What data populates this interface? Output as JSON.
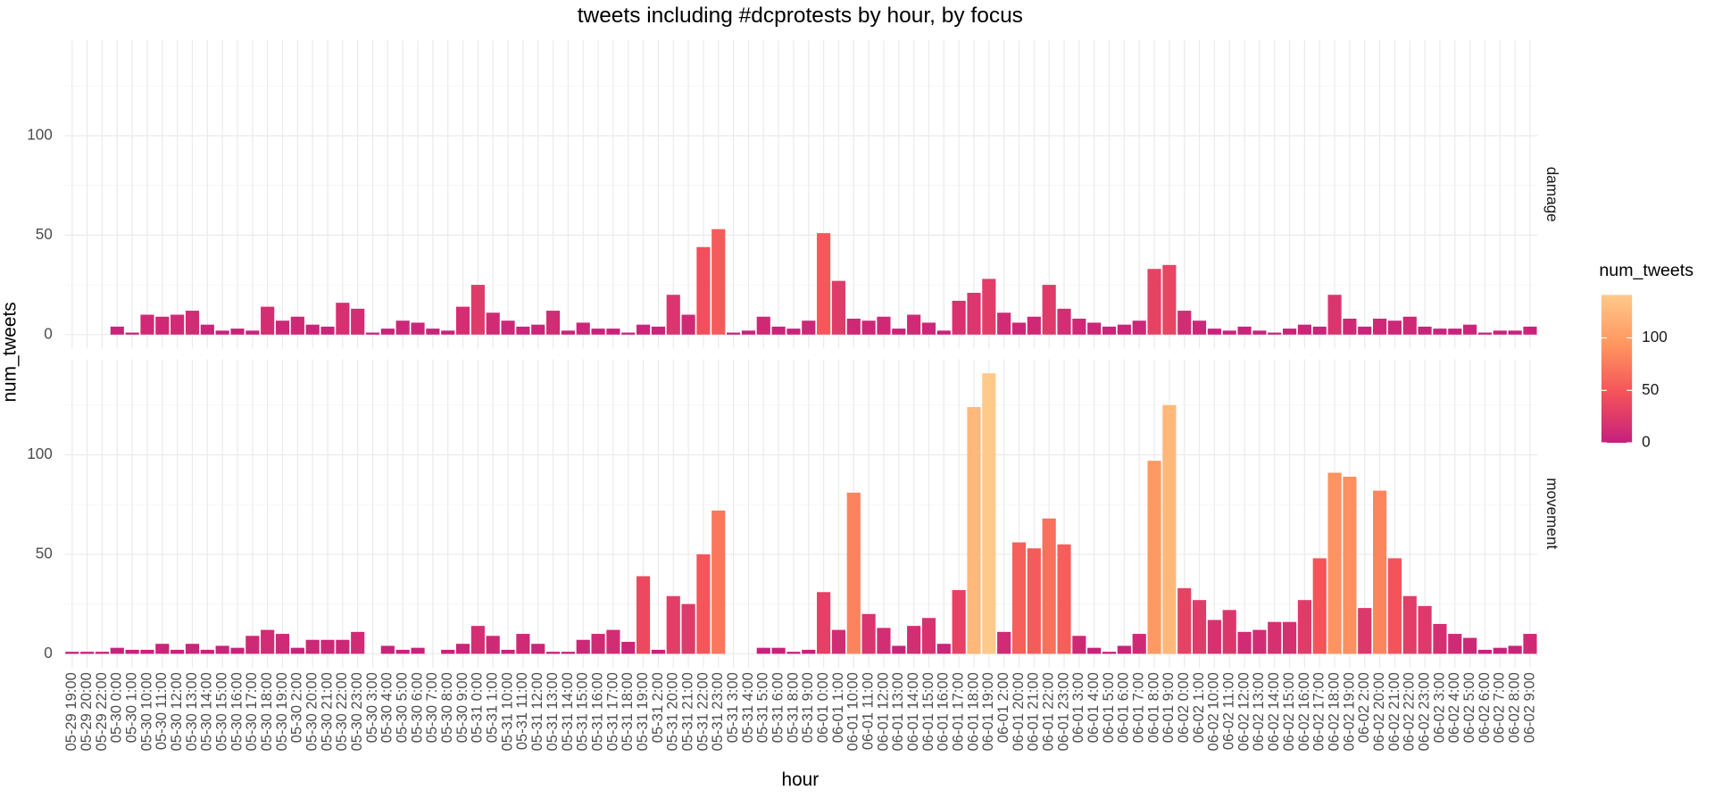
{
  "chart_data": {
    "type": "bar",
    "title": "tweets including #dcprotests by hour, by focus",
    "x_label": "hour",
    "y_label": "num_tweets",
    "legend_title": "num_tweets",
    "categories": [
      "05-29 19:00",
      "05-29 20:00",
      "05-29 22:00",
      "05-30 0:00",
      "05-30 1:00",
      "05-30 10:00",
      "05-30 11:00",
      "05-30 12:00",
      "05-30 13:00",
      "05-30 14:00",
      "05-30 15:00",
      "05-30 16:00",
      "05-30 17:00",
      "05-30 18:00",
      "05-30 19:00",
      "05-30 2:00",
      "05-30 20:00",
      "05-30 21:00",
      "05-30 22:00",
      "05-30 23:00",
      "05-30 3:00",
      "05-30 4:00",
      "05-30 5:00",
      "05-30 6:00",
      "05-30 7:00",
      "05-30 8:00",
      "05-30 9:00",
      "05-31 0:00",
      "05-31 1:00",
      "05-31 10:00",
      "05-31 11:00",
      "05-31 12:00",
      "05-31 13:00",
      "05-31 14:00",
      "05-31 15:00",
      "05-31 16:00",
      "05-31 17:00",
      "05-31 18:00",
      "05-31 19:00",
      "05-31 2:00",
      "05-31 20:00",
      "05-31 21:00",
      "05-31 22:00",
      "05-31 23:00",
      "05-31 3:00",
      "05-31 4:00",
      "05-31 5:00",
      "05-31 6:00",
      "05-31 8:00",
      "05-31 9:00",
      "06-01 0:00",
      "06-01 1:00",
      "06-01 10:00",
      "06-01 11:00",
      "06-01 12:00",
      "06-01 13:00",
      "06-01 14:00",
      "06-01 15:00",
      "06-01 16:00",
      "06-01 17:00",
      "06-01 18:00",
      "06-01 19:00",
      "06-01 2:00",
      "06-01 20:00",
      "06-01 21:00",
      "06-01 22:00",
      "06-01 23:00",
      "06-01 3:00",
      "06-01 4:00",
      "06-01 5:00",
      "06-01 6:00",
      "06-01 7:00",
      "06-01 8:00",
      "06-01 9:00",
      "06-02 0:00",
      "06-02 1:00",
      "06-02 10:00",
      "06-02 11:00",
      "06-02 12:00",
      "06-02 13:00",
      "06-02 14:00",
      "06-02 15:00",
      "06-02 16:00",
      "06-02 17:00",
      "06-02 18:00",
      "06-02 19:00",
      "06-02 2:00",
      "06-02 20:00",
      "06-02 21:00",
      "06-02 22:00",
      "06-02 23:00",
      "06-02 3:00",
      "06-02 4:00",
      "06-02 5:00",
      "06-02 6:00",
      "06-02 7:00",
      "06-02 8:00",
      "06-02 9:00"
    ],
    "facets": [
      {
        "name": "damage",
        "values": [
          0,
          0,
          0,
          4,
          1,
          10,
          9,
          10,
          12,
          5,
          2,
          3,
          2,
          14,
          7,
          9,
          5,
          4,
          16,
          13,
          1,
          3,
          7,
          6,
          3,
          2,
          14,
          25,
          11,
          7,
          4,
          5,
          12,
          2,
          6,
          3,
          3,
          1,
          5,
          4,
          20,
          10,
          44,
          53,
          1,
          2,
          9,
          4,
          3,
          7,
          51,
          27,
          8,
          7,
          9,
          3,
          10,
          6,
          2,
          17,
          21,
          28,
          11,
          6,
          9,
          25,
          13,
          8,
          6,
          4,
          5,
          7,
          33,
          35,
          12,
          7,
          3,
          2,
          4,
          2,
          1,
          3,
          5,
          4,
          20,
          8,
          4,
          8,
          7,
          9,
          4,
          3,
          3,
          5,
          1,
          2,
          2,
          4
        ]
      },
      {
        "name": "movement",
        "values": [
          1,
          1,
          1,
          3,
          2,
          2,
          5,
          2,
          5,
          2,
          4,
          3,
          9,
          12,
          10,
          3,
          7,
          7,
          7,
          11,
          0,
          4,
          2,
          3,
          0,
          2,
          5,
          14,
          9,
          2,
          10,
          5,
          1,
          1,
          7,
          10,
          12,
          6,
          39,
          2,
          29,
          25,
          50,
          72,
          0,
          0,
          3,
          3,
          1,
          2,
          31,
          12,
          81,
          20,
          13,
          4,
          14,
          18,
          5,
          32,
          124,
          141,
          11,
          56,
          53,
          68,
          55,
          9,
          3,
          1,
          4,
          10,
          97,
          125,
          33,
          27,
          17,
          22,
          11,
          12,
          16,
          16,
          27,
          48,
          91,
          89,
          23,
          82,
          48,
          29,
          24,
          15,
          10,
          8,
          2,
          3,
          4,
          10
        ]
      }
    ],
    "ylim": [
      -7,
      148
    ],
    "yticks": [
      0,
      50,
      100
    ],
    "minor_yticks": [
      25,
      75,
      125
    ],
    "legend_ticks": [
      0,
      50,
      100
    ],
    "fill_colors": [
      "#c61f7d",
      "#f4525a",
      "#ff9660",
      "#ffc989"
    ],
    "grid": true
  }
}
